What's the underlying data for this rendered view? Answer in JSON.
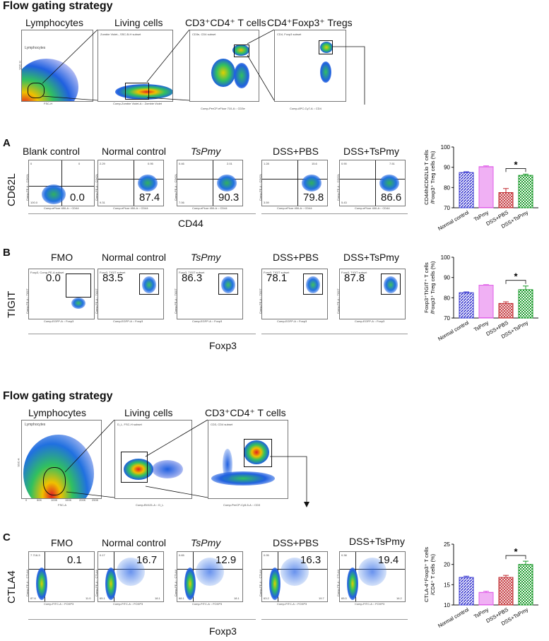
{
  "gating_top": {
    "heading": "Flow gating strategy",
    "plots": [
      {
        "title": "Lymphocytes",
        "gate_label": "Lymphocytes",
        "x_axis": "FSC-H",
        "y_axis": "SSC-H"
      },
      {
        "title": "Living cells",
        "subset": "Zombie Violet-, SSC-B-H subset",
        "x_axis": "Comp-Zombie Violet-A :: Zombie Violet",
        "y_axis": "SSC-B-H"
      },
      {
        "title": "CD3⁺CD4⁺ T cells",
        "subset": "CD3e, CD4 subset",
        "x_axis": "Comp-PerCP-eFluor 710-A :: CD3e",
        "y_axis": "Comp-APC-Cy7-A :: CD4"
      },
      {
        "title": "CD4⁺Foxp3⁺ Tregs",
        "subset": "CD4, Foxp3 subset",
        "x_axis": "Comp-APC-Cy7-A :: CD4",
        "y_axis": "Comp-EGFP-A :: Foxp3"
      }
    ]
  },
  "panelA": {
    "label": "A",
    "y_marker": "CD62L",
    "x_marker": "CD44",
    "plot_x_axis": "Comp-eFluor 450-A :: CD44",
    "plot_y_axis": "Comp-PE-A :: CD62L",
    "groups": [
      {
        "title": "Blank control",
        "value": "0.0",
        "q1": "0",
        "q2": "0",
        "q4": "100.0"
      },
      {
        "title": "Normal control",
        "value": "87.4",
        "q1": "2.29",
        "q2": "0.95",
        "q4": "9.31"
      },
      {
        "title": "TsPmy",
        "value": "90.3",
        "q1": "0.46",
        "q2": "2.01",
        "q4": "7.06"
      },
      {
        "title": "DSS+PBS",
        "value": "79.8",
        "q1": "1.28",
        "q2": "15.6",
        "q4": "3.59"
      },
      {
        "title": "DSS+TsPmy",
        "value": "86.6",
        "q1": "0.90",
        "q2": "7.51",
        "q4": "5.43"
      }
    ]
  },
  "panelB": {
    "label": "B",
    "y_marker": "TIGIT",
    "x_marker": "Foxp3",
    "plot_x_axis": "Comp-EGFP-A :: Foxp3",
    "plot_y_axis": "Comp-PE-A :: TIGIT",
    "groups": [
      {
        "title": "FMO",
        "value": "0.0",
        "subset": "Foxp3, Comp-PE-A subset"
      },
      {
        "title": "Normal control",
        "value": "83.5",
        "subset": "Foxp3, TIGIT subset"
      },
      {
        "title": "TsPmy",
        "value": "86.3",
        "subset": "Foxp3, TIGIT subset"
      },
      {
        "title": "DSS+PBS",
        "value": "78.1",
        "subset": "Foxp3, TIGIT subset"
      },
      {
        "title": "DSS+TsPmy",
        "value": "87.8",
        "subset": "Foxp3, TIGIT subset"
      }
    ]
  },
  "gating_bottom": {
    "heading": "Flow gating strategy",
    "plots": [
      {
        "title": "Lymphocytes",
        "gate_label": "Lymphocytes",
        "x_axis": "FSC-A",
        "y_axis": "SSC-A",
        "ticks": [
          "0",
          "50K",
          "100K",
          "150K",
          "200K",
          "250K"
        ]
      },
      {
        "title": "Living cells",
        "subset": "D_L, FSC-H subset",
        "x_axis": "Comp-BV421-A :: D_L",
        "y_axis": "FSC-H"
      },
      {
        "title": "CD3⁺CD4⁺ T cells",
        "subset": "CD3, CD4 subset",
        "x_axis": "Comp-PerCP-Cy5-5-A :: CD3",
        "y_axis": "Comp-APC-Cy7-A :: CD4"
      }
    ]
  },
  "panelC": {
    "label": "C",
    "y_marker": "CTLA4",
    "x_marker": "Foxp3",
    "plot_x_axis": "Comp-FITC-A :: FOXP3",
    "plot_y_axis": "Comp-PE-A :: CTLA4",
    "groups": [
      {
        "title": "FMO",
        "value": "0.1",
        "q1": "7.718-3",
        "q4": "87.6",
        "q3": "11.0"
      },
      {
        "title": "Normal control",
        "value": "16.7",
        "q1": "0.17",
        "q4": "65.1",
        "q3": "18.1"
      },
      {
        "title": "TsPmy",
        "value": "12.9",
        "q1": "0.65",
        "q4": "68.1",
        "q3": "18.1"
      },
      {
        "title": "DSS+PBS",
        "value": "16.3",
        "q1": "0.95",
        "q4": "63.2",
        "q3": "19.7"
      },
      {
        "title": "DSS+TsPmy",
        "value": "19.4",
        "q1": "0.38",
        "q4": "65.0",
        "q3": "16.2"
      }
    ]
  },
  "chart_data": [
    {
      "type": "bar",
      "ylabel_line1": "CD44hiCD62Llo T cells",
      "ylabel_line2": "/Foxp3⁺ Treg cells (%)",
      "categories": [
        "Normal control",
        "TsPmy",
        "DSS+PBS",
        "DSS+TsPmy"
      ],
      "values": [
        87.4,
        90.3,
        77.5,
        86.0
      ],
      "errors": [
        0.4,
        0.4,
        2.0,
        0.6
      ],
      "ylim": [
        70,
        100
      ],
      "yticks": [
        "70",
        "80",
        "90",
        "100"
      ],
      "colors": [
        "#3b3bd0",
        "#e060e8",
        "#c0282e",
        "#1a9a2a"
      ],
      "significance": "*"
    },
    {
      "type": "bar",
      "ylabel_line1": "Foxp3⁺TIGIT⁺ T cells",
      "ylabel_line2": "/Foxp3⁺ Treg cells (%)",
      "categories": [
        "Normal control",
        "TsPmy",
        "DSS+PBS",
        "DSS+TsPmy"
      ],
      "values": [
        82.5,
        86.2,
        77.2,
        84.0
      ],
      "errors": [
        0.4,
        0.3,
        0.8,
        1.8
      ],
      "ylim": [
        70,
        100
      ],
      "yticks": [
        "70",
        "80",
        "90",
        "100"
      ],
      "colors": [
        "#3b3bd0",
        "#e060e8",
        "#c0282e",
        "#1a9a2a"
      ],
      "significance": "*"
    },
    {
      "type": "bar",
      "ylabel_line1": "CTLA-4⁺Foxp3⁺ T cells",
      "ylabel_line2": "/CD4⁺ T cells (%)",
      "categories": [
        "Normal control",
        "TsPmy",
        "DSS+PBS",
        "DSS+TsPmy"
      ],
      "values": [
        16.8,
        13.1,
        16.8,
        20.0
      ],
      "errors": [
        0.3,
        0.3,
        0.5,
        0.8
      ],
      "ylim": [
        10,
        25
      ],
      "yticks": [
        "10",
        "15",
        "20",
        "25"
      ],
      "colors": [
        "#3b3bd0",
        "#e060e8",
        "#c0282e",
        "#1a9a2a"
      ],
      "significance": "*"
    }
  ]
}
